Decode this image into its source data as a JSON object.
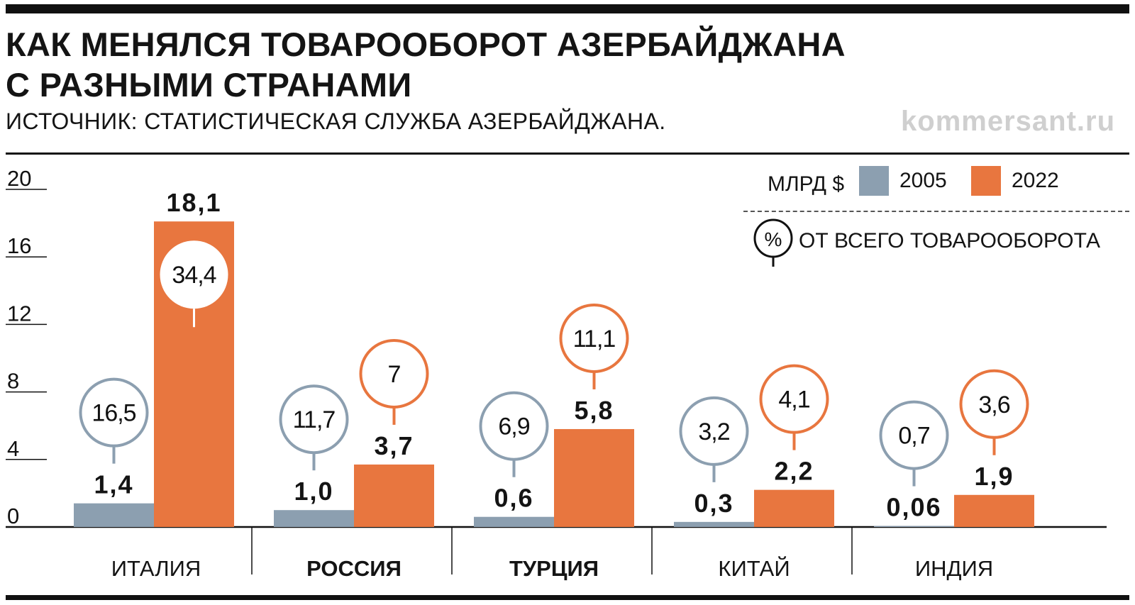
{
  "title_lines": [
    "КАК МЕНЯЛСЯ ТОВАРООБОРОТ АЗЕРБАЙДЖАНА",
    "С РАЗНЫМИ СТРАНАМИ"
  ],
  "subtitle": "ИСТОЧНИК: СТАТИСТИЧЕСКАЯ СЛУЖБА АЗЕРБАЙДЖАНА.",
  "brand": "kommersant.ru",
  "legend": {
    "unit": "МЛРД $",
    "series_2005": "2005",
    "series_2022": "2022",
    "percent_symbol": "%",
    "percent_note": "ОТ ВСЕГО ТОВАРООБОРОТА"
  },
  "colors": {
    "s2005": "#8c9fb0",
    "s2022": "#e8763f",
    "text": "#141414",
    "brand": "#cfcfcf"
  },
  "chart_data": {
    "type": "bar",
    "title": "КАК МЕНЯЛСЯ ТОВАРООБОРОТ АЗЕРБАЙДЖАНА С РАЗНЫМИ СТРАНАМИ",
    "ylabel": "МЛРД $",
    "ylim": [
      0,
      20
    ],
    "yticks": [
      0,
      4,
      8,
      12,
      16,
      20
    ],
    "categories": [
      "ИТАЛИЯ",
      "РОССИЯ",
      "ТУРЦИЯ",
      "КИТАЙ",
      "ИНДИЯ"
    ],
    "bold_categories": [
      "РОССИЯ",
      "ТУРЦИЯ"
    ],
    "series": [
      {
        "name": "2005",
        "values": [
          1.4,
          1.0,
          0.6,
          0.3,
          0.06
        ],
        "labels": [
          "1,4",
          "1,0",
          "0,6",
          "0,3",
          "0,06"
        ],
        "share_labels": [
          "16,5",
          "11,7",
          "6,9",
          "3,2",
          "0,7"
        ]
      },
      {
        "name": "2022",
        "values": [
          18.1,
          3.7,
          5.8,
          2.2,
          1.9
        ],
        "labels": [
          "18,1",
          "3,7",
          "5,8",
          "2,2",
          "1,9"
        ],
        "share_labels": [
          "34,4",
          "7",
          "11,1",
          "4,1",
          "3,6"
        ]
      }
    ],
    "share_unit": "% ОТ ВСЕГО ТОВАРООБОРОТА",
    "grid": false,
    "legend_position": "top-right"
  }
}
